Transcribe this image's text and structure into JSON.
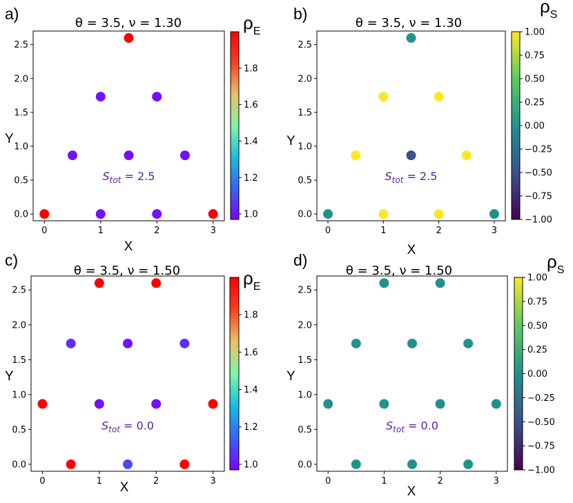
{
  "colors": {
    "annotation": "#5b1f9a",
    "rainbow": [
      "#7f00ff",
      "#3a62f8",
      "#13c1e2",
      "#80f5a8",
      "#e9c163",
      "#ff3e20",
      "#ff0000"
    ],
    "viridis": [
      "#440154",
      "#3b528b",
      "#21918c",
      "#5ec962",
      "#fde725"
    ]
  },
  "chart_data": [
    {
      "id": "a",
      "type": "scatter",
      "panel_label": "a)",
      "title": "θ = 3.5, ν = 1.30",
      "xlabel": "X",
      "ylabel": "Y",
      "xlim": [
        -0.2,
        3.2
      ],
      "ylim": [
        -0.1,
        2.7
      ],
      "xticks": [
        "0",
        "1",
        "2",
        "3"
      ],
      "xtick_values": [
        0,
        1,
        2,
        3
      ],
      "yticks": [
        "0.0",
        "0.5",
        "1.0",
        "1.5",
        "2.0",
        "2.5"
      ],
      "ytick_values": [
        0,
        0.5,
        1.0,
        1.5,
        2.0,
        2.5
      ],
      "annotation": {
        "base": "S",
        "sub": "tot",
        "rest": " = 2.5",
        "x": 1.5,
        "y": 0.5
      },
      "colorbar": {
        "label": "ρ",
        "label_sub": "E",
        "cmap": "rainbow",
        "vmin": 0.97,
        "vmax": 2.0,
        "ticks": [
          "1.0",
          "1.2",
          "1.4",
          "1.6",
          "1.8"
        ],
        "tick_values": [
          1.0,
          1.2,
          1.4,
          1.6,
          1.8
        ]
      },
      "points": [
        {
          "x": 1.5,
          "y": 2.598,
          "value": 2.0
        },
        {
          "x": 1.0,
          "y": 1.732,
          "value": 1.0
        },
        {
          "x": 2.0,
          "y": 1.732,
          "value": 1.0
        },
        {
          "x": 0.5,
          "y": 0.866,
          "value": 1.0
        },
        {
          "x": 1.5,
          "y": 0.866,
          "value": 1.0
        },
        {
          "x": 2.5,
          "y": 0.866,
          "value": 1.0
        },
        {
          "x": 0.0,
          "y": 0.0,
          "value": 2.0
        },
        {
          "x": 1.0,
          "y": 0.0,
          "value": 1.0
        },
        {
          "x": 2.0,
          "y": 0.0,
          "value": 1.0
        },
        {
          "x": 3.0,
          "y": 0.0,
          "value": 2.0
        }
      ]
    },
    {
      "id": "b",
      "type": "scatter",
      "panel_label": "b)",
      "title": "θ = 3.5, ν = 1.30",
      "xlabel": "X",
      "ylabel": "Y",
      "xlim": [
        -0.2,
        3.2
      ],
      "ylim": [
        -0.1,
        2.7
      ],
      "xticks": [
        "0",
        "1",
        "2",
        "3"
      ],
      "xtick_values": [
        0,
        1,
        2,
        3
      ],
      "yticks": [
        "0.0",
        "0.5",
        "1.0",
        "1.5",
        "2.0",
        "2.5"
      ],
      "ytick_values": [
        0,
        0.5,
        1.0,
        1.5,
        2.0,
        2.5
      ],
      "annotation": {
        "base": "S",
        "sub": "tot",
        "rest": " = 2.5",
        "x": 1.5,
        "y": 0.5
      },
      "colorbar": {
        "label": "ρ",
        "label_sub": "S",
        "cmap": "viridis",
        "vmin": -1.0,
        "vmax": 1.0,
        "ticks": [
          "1.00",
          "0.75",
          "0.50",
          "0.25",
          "0.00",
          "−0.25",
          "−0.50",
          "−0.75",
          "−1.00"
        ],
        "tick_values": [
          1.0,
          0.75,
          0.5,
          0.25,
          0.0,
          -0.25,
          -0.5,
          -0.75,
          -1.0
        ]
      },
      "points": [
        {
          "x": 1.5,
          "y": 2.598,
          "value": 0.0
        },
        {
          "x": 1.0,
          "y": 1.732,
          "value": 1.0
        },
        {
          "x": 2.0,
          "y": 1.732,
          "value": 1.0
        },
        {
          "x": 0.5,
          "y": 0.866,
          "value": 1.0
        },
        {
          "x": 1.5,
          "y": 0.866,
          "value": -0.5
        },
        {
          "x": 2.5,
          "y": 0.866,
          "value": 1.0
        },
        {
          "x": 0.0,
          "y": 0.0,
          "value": 0.0
        },
        {
          "x": 1.0,
          "y": 0.0,
          "value": 1.0
        },
        {
          "x": 2.0,
          "y": 0.0,
          "value": 1.0
        },
        {
          "x": 3.0,
          "y": 0.0,
          "value": 0.0
        }
      ]
    },
    {
      "id": "c",
      "type": "scatter",
      "panel_label": "c)",
      "title": "θ = 3.5, ν = 1.50",
      "xlabel": "X",
      "ylabel": "Y",
      "xlim": [
        -0.2,
        3.2
      ],
      "ylim": [
        -0.1,
        2.7
      ],
      "xticks": [
        "0",
        "1",
        "2",
        "3"
      ],
      "xtick_values": [
        0,
        1,
        2,
        3
      ],
      "yticks": [
        "0.0",
        "0.5",
        "1.0",
        "1.5",
        "2.0",
        "2.5"
      ],
      "ytick_values": [
        0,
        0.5,
        1.0,
        1.5,
        2.0,
        2.5
      ],
      "annotation": {
        "base": "S",
        "sub": "tot",
        "rest": " = 0.0",
        "x": 1.5,
        "y": 0.5
      },
      "colorbar": {
        "label": "ρ",
        "label_sub": "E",
        "cmap": "rainbow",
        "vmin": 0.97,
        "vmax": 2.0,
        "ticks": [
          "1.0",
          "1.2",
          "1.4",
          "1.6",
          "1.8"
        ],
        "tick_values": [
          1.0,
          1.2,
          1.4,
          1.6,
          1.8
        ]
      },
      "points": [
        {
          "x": 1.0,
          "y": 2.598,
          "value": 2.0
        },
        {
          "x": 2.0,
          "y": 2.598,
          "value": 2.0
        },
        {
          "x": 0.5,
          "y": 1.732,
          "value": 1.05
        },
        {
          "x": 1.5,
          "y": 1.732,
          "value": 1.0
        },
        {
          "x": 2.5,
          "y": 1.732,
          "value": 1.05
        },
        {
          "x": 0.0,
          "y": 0.866,
          "value": 2.0
        },
        {
          "x": 1.0,
          "y": 0.866,
          "value": 1.0
        },
        {
          "x": 2.0,
          "y": 0.866,
          "value": 1.0
        },
        {
          "x": 3.0,
          "y": 0.866,
          "value": 2.0
        },
        {
          "x": 0.5,
          "y": 0.0,
          "value": 2.0
        },
        {
          "x": 1.5,
          "y": 0.0,
          "value": 1.1
        },
        {
          "x": 2.5,
          "y": 0.0,
          "value": 2.0
        }
      ]
    },
    {
      "id": "d",
      "type": "scatter",
      "panel_label": "d)",
      "title": "θ = 3.5, ν = 1.50",
      "xlabel": "X",
      "ylabel": "Y",
      "xlim": [
        -0.2,
        3.2
      ],
      "ylim": [
        -0.1,
        2.7
      ],
      "xticks": [
        "0",
        "1",
        "2",
        "3"
      ],
      "xtick_values": [
        0,
        1,
        2,
        3
      ],
      "yticks": [
        "0.0",
        "0.5",
        "1.0",
        "1.5",
        "2.0",
        "2.5"
      ],
      "ytick_values": [
        0,
        0.5,
        1.0,
        1.5,
        2.0,
        2.5
      ],
      "annotation": {
        "base": "S",
        "sub": "tot",
        "rest": " = 0.0",
        "x": 1.5,
        "y": 0.5
      },
      "colorbar": {
        "label": "ρ",
        "label_sub": "S",
        "cmap": "viridis",
        "vmin": -1.0,
        "vmax": 1.0,
        "ticks": [
          "1.00",
          "0.75",
          "0.50",
          "0.25",
          "0.00",
          "−0.25",
          "−0.50",
          "−0.75",
          "−1.00"
        ],
        "tick_values": [
          1.0,
          0.75,
          0.5,
          0.25,
          0.0,
          -0.25,
          -0.5,
          -0.75,
          -1.0
        ]
      },
      "points": [
        {
          "x": 1.0,
          "y": 2.598,
          "value": 0.0
        },
        {
          "x": 2.0,
          "y": 2.598,
          "value": 0.0
        },
        {
          "x": 0.5,
          "y": 1.732,
          "value": 0.0
        },
        {
          "x": 1.5,
          "y": 1.732,
          "value": 0.0
        },
        {
          "x": 2.5,
          "y": 1.732,
          "value": 0.0
        },
        {
          "x": 0.0,
          "y": 0.866,
          "value": 0.0
        },
        {
          "x": 1.0,
          "y": 0.866,
          "value": 0.0
        },
        {
          "x": 2.0,
          "y": 0.866,
          "value": 0.0
        },
        {
          "x": 3.0,
          "y": 0.866,
          "value": 0.0
        },
        {
          "x": 0.5,
          "y": 0.0,
          "value": 0.0
        },
        {
          "x": 1.5,
          "y": 0.0,
          "value": 0.0
        },
        {
          "x": 2.5,
          "y": 0.0,
          "value": 0.0
        }
      ]
    }
  ]
}
